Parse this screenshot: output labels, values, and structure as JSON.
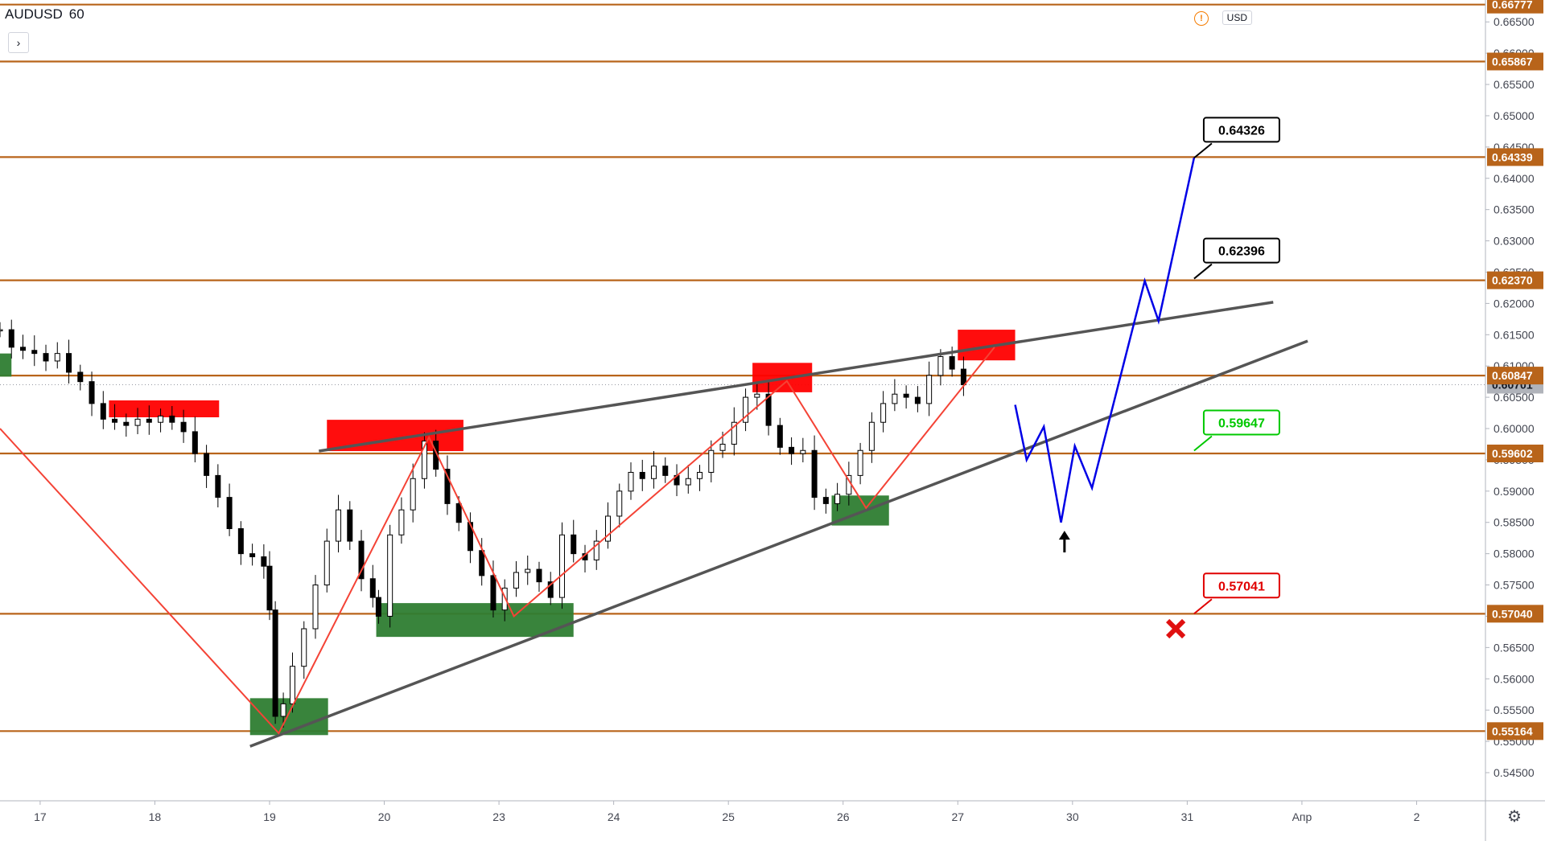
{
  "header": {
    "symbol": "AUDUSD",
    "interval": "60",
    "expand_label": "›",
    "currency": "USD",
    "alert_label": "!"
  },
  "chart_data": {
    "type": "candlestick",
    "title": "AUDUSD 60",
    "ylim": [
      0.5405,
      0.6685
    ],
    "y_ticks": [
      "0.54500",
      "0.55000",
      "0.55500",
      "0.56000",
      "0.56500",
      "0.57000",
      "0.57500",
      "0.58000",
      "0.58500",
      "0.59000",
      "0.59500",
      "0.60000",
      "0.60500",
      "0.61000",
      "0.61500",
      "0.62000",
      "0.62500",
      "0.63000",
      "0.63500",
      "0.64000",
      "0.64500",
      "0.65000",
      "0.65500",
      "0.66000",
      "0.66500"
    ],
    "x_ticks": [
      {
        "label": "17",
        "x": 0.5
      },
      {
        "label": "18",
        "x": 1.5
      },
      {
        "label": "19",
        "x": 2.5
      },
      {
        "label": "20",
        "x": 3.5
      },
      {
        "label": "23",
        "x": 4.5
      },
      {
        "label": "24",
        "x": 5.5
      },
      {
        "label": "25",
        "x": 6.5
      },
      {
        "label": "26",
        "x": 7.5
      },
      {
        "label": "27",
        "x": 8.5
      },
      {
        "label": "30",
        "x": 9.5
      },
      {
        "label": "31",
        "x": 10.5
      },
      {
        "label": "Апр",
        "x": 11.5
      },
      {
        "label": "2",
        "x": 12.5
      }
    ],
    "xlim": [
      0.15,
      13.1
    ],
    "current_price": "0.60701",
    "horizontal_levels": [
      {
        "value": 0.66777,
        "label": "0.66777"
      },
      {
        "value": 0.65867,
        "label": "0.65867"
      },
      {
        "value": 0.64339,
        "label": "0.64339"
      },
      {
        "value": 0.6237,
        "label": "0.62370"
      },
      {
        "value": 0.60847,
        "label": "0.60847"
      },
      {
        "value": 0.59602,
        "label": "0.59602"
      },
      {
        "value": 0.5704,
        "label": "0.57040"
      },
      {
        "value": 0.55164,
        "label": "0.55164"
      }
    ],
    "targets": [
      {
        "label": "0.64326",
        "value": 0.64326,
        "color": "#000000"
      },
      {
        "label": "0.62396",
        "value": 0.62396,
        "color": "#000000"
      },
      {
        "label": "0.59647",
        "value": 0.59647,
        "color": "#00c800"
      },
      {
        "label": "0.57041",
        "value": 0.57041,
        "color": "#e00000"
      }
    ],
    "candles_close": [
      [
        0.15,
        0.6158
      ],
      [
        0.25,
        0.613
      ],
      [
        0.35,
        0.6125
      ],
      [
        0.45,
        0.612
      ],
      [
        0.55,
        0.6108
      ],
      [
        0.65,
        0.612
      ],
      [
        0.75,
        0.609
      ],
      [
        0.85,
        0.6075
      ],
      [
        0.95,
        0.604
      ],
      [
        1.05,
        0.6015
      ],
      [
        1.15,
        0.601
      ],
      [
        1.25,
        0.6005
      ],
      [
        1.35,
        0.6015
      ],
      [
        1.45,
        0.601
      ],
      [
        1.55,
        0.602
      ],
      [
        1.65,
        0.601
      ],
      [
        1.75,
        0.5995
      ],
      [
        1.85,
        0.596
      ],
      [
        1.95,
        0.5925
      ],
      [
        2.05,
        0.589
      ],
      [
        2.15,
        0.584
      ],
      [
        2.25,
        0.58
      ],
      [
        2.35,
        0.5795
      ],
      [
        2.45,
        0.578
      ],
      [
        2.5,
        0.571
      ],
      [
        2.55,
        0.554
      ],
      [
        2.62,
        0.556
      ],
      [
        2.7,
        0.562
      ],
      [
        2.8,
        0.568
      ],
      [
        2.9,
        0.575
      ],
      [
        3.0,
        0.582
      ],
      [
        3.1,
        0.587
      ],
      [
        3.2,
        0.582
      ],
      [
        3.3,
        0.576
      ],
      [
        3.4,
        0.573
      ],
      [
        3.45,
        0.57
      ],
      [
        3.55,
        0.583
      ],
      [
        3.65,
        0.587
      ],
      [
        3.75,
        0.592
      ],
      [
        3.85,
        0.598
      ],
      [
        3.95,
        0.5935
      ],
      [
        4.05,
        0.588
      ],
      [
        4.15,
        0.585
      ],
      [
        4.25,
        0.5805
      ],
      [
        4.35,
        0.5765
      ],
      [
        4.45,
        0.571
      ],
      [
        4.55,
        0.5745
      ],
      [
        4.65,
        0.577
      ],
      [
        4.75,
        0.5775
      ],
      [
        4.85,
        0.5755
      ],
      [
        4.95,
        0.573
      ],
      [
        5.05,
        0.583
      ],
      [
        5.15,
        0.58
      ],
      [
        5.25,
        0.579
      ],
      [
        5.35,
        0.582
      ],
      [
        5.45,
        0.586
      ],
      [
        5.55,
        0.59
      ],
      [
        5.65,
        0.593
      ],
      [
        5.75,
        0.592
      ],
      [
        5.85,
        0.594
      ],
      [
        5.95,
        0.5925
      ],
      [
        6.05,
        0.591
      ],
      [
        6.15,
        0.592
      ],
      [
        6.25,
        0.593
      ],
      [
        6.35,
        0.5965
      ],
      [
        6.45,
        0.5975
      ],
      [
        6.55,
        0.601
      ],
      [
        6.65,
        0.605
      ],
      [
        6.75,
        0.6055
      ],
      [
        6.85,
        0.6005
      ],
      [
        6.95,
        0.597
      ],
      [
        7.05,
        0.596
      ],
      [
        7.15,
        0.5965
      ],
      [
        7.25,
        0.589
      ],
      [
        7.35,
        0.588
      ],
      [
        7.45,
        0.5895
      ],
      [
        7.55,
        0.5925
      ],
      [
        7.65,
        0.5965
      ],
      [
        7.75,
        0.601
      ],
      [
        7.85,
        0.604
      ],
      [
        7.95,
        0.6055
      ],
      [
        8.05,
        0.605
      ],
      [
        8.15,
        0.604
      ],
      [
        8.25,
        0.6085
      ],
      [
        8.35,
        0.6115
      ],
      [
        8.45,
        0.6095
      ],
      [
        8.55,
        0.607
      ]
    ],
    "zones": [
      {
        "color": "#ff0000",
        "from": [
          1.1,
          0.6045
        ],
        "to": [
          2.06,
          0.6018
        ]
      },
      {
        "color": "#ff0000",
        "from": [
          3.0,
          0.6014
        ],
        "to": [
          4.19,
          0.5964
        ]
      },
      {
        "color": "#ff0000",
        "from": [
          6.71,
          0.6105
        ],
        "to": [
          7.23,
          0.6058
        ]
      },
      {
        "color": "#ff0000",
        "from": [
          8.5,
          0.6158
        ],
        "to": [
          9.0,
          0.6109
        ]
      },
      {
        "color": "#2e7d32",
        "from": [
          0.15,
          0.612
        ],
        "to": [
          0.25,
          0.6083
        ]
      },
      {
        "color": "#2e7d32",
        "from": [
          2.33,
          0.5569
        ],
        "to": [
          3.01,
          0.551
        ]
      },
      {
        "color": "#2e7d32",
        "from": [
          3.43,
          0.5721
        ],
        "to": [
          5.15,
          0.5667
        ]
      },
      {
        "color": "#2e7d32",
        "from": [
          7.4,
          0.5893
        ],
        "to": [
          7.9,
          0.5845
        ]
      }
    ],
    "trend_lines": [
      {
        "color": "#555555",
        "points": [
          [
            2.33,
            0.5492
          ],
          [
            11.55,
            0.614
          ]
        ]
      },
      {
        "color": "#555555",
        "points": [
          [
            2.93,
            0.5964
          ],
          [
            11.25,
            0.6202
          ]
        ]
      }
    ],
    "zigzag": {
      "color": "#f44336",
      "points": [
        [
          0.15,
          0.6
        ],
        [
          2.58,
          0.5513
        ],
        [
          3.89,
          0.5986
        ],
        [
          4.63,
          0.57
        ],
        [
          7.01,
          0.6076
        ],
        [
          7.7,
          0.5873
        ],
        [
          8.82,
          0.613
        ]
      ]
    },
    "projection": {
      "color": "#0000e6",
      "points": [
        [
          9.0,
          0.6038
        ],
        [
          9.1,
          0.595
        ],
        [
          9.25,
          0.6003
        ],
        [
          9.4,
          0.585
        ],
        [
          9.52,
          0.5972
        ],
        [
          9.67,
          0.5905
        ],
        [
          10.13,
          0.6236
        ],
        [
          10.25,
          0.6172
        ],
        [
          10.56,
          0.6433
        ]
      ]
    },
    "arrow": {
      "x": 9.43,
      "value": 0.582
    },
    "cross": {
      "x": 10.4,
      "value": 0.568
    }
  }
}
